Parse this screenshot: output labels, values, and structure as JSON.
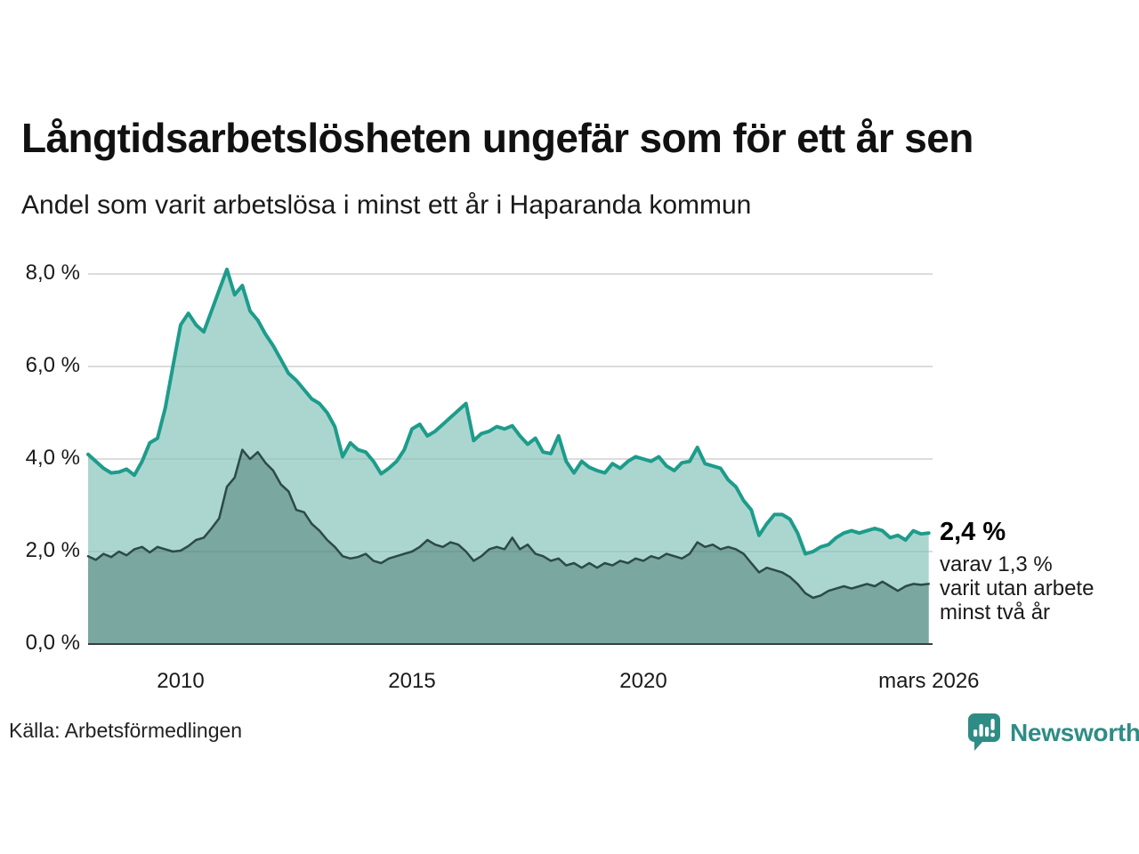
{
  "header": {
    "title": "Långtidsarbetslösheten ungefär som för ett år sen",
    "subtitle": "Andel som varit arbetslösa i minst ett år i Haparanda kommun"
  },
  "chart_data": {
    "type": "area",
    "title": "Långtidsarbetslösheten ungefär som för ett år sen",
    "subtitle": "Andel som varit arbetslösa i minst ett år i Haparanda kommun",
    "x_start_year": 2008.0,
    "x_step_years": 0.166667,
    "x_end_label": "mars 2026",
    "ylim": [
      0,
      8.4
    ],
    "grid": true,
    "y_ticks": [
      {
        "label": "8,0 %",
        "value": 8
      },
      {
        "label": "6,0 %",
        "value": 6
      },
      {
        "label": "4,0 %",
        "value": 4
      },
      {
        "label": "2,0 %",
        "value": 2
      },
      {
        "label": "0,0 %",
        "value": 0
      }
    ],
    "x_ticks": [
      {
        "label": "2010",
        "year": 2010
      },
      {
        "label": "2015",
        "year": 2015
      },
      {
        "label": "2020",
        "year": 2020
      },
      {
        "label": "mars 2026",
        "year": 2026.17
      }
    ],
    "series": [
      {
        "name": "arbetslösa minst ett år",
        "line_color": "#1d9c8b",
        "fill_color": "#abd6d0",
        "line_width": 4,
        "values": [
          4.1,
          3.95,
          3.8,
          3.7,
          3.72,
          3.78,
          3.65,
          3.95,
          4.35,
          4.45,
          5.1,
          6.0,
          6.9,
          7.15,
          6.9,
          6.75,
          7.2,
          7.65,
          8.1,
          7.55,
          7.75,
          7.2,
          7.0,
          6.7,
          6.45,
          6.15,
          5.85,
          5.7,
          5.5,
          5.3,
          5.2,
          5.0,
          4.7,
          4.05,
          4.35,
          4.2,
          4.15,
          3.95,
          3.68,
          3.8,
          3.95,
          4.2,
          4.65,
          4.75,
          4.5,
          4.6,
          4.75,
          4.9,
          5.05,
          5.2,
          4.4,
          4.55,
          4.6,
          4.7,
          4.65,
          4.72,
          4.5,
          4.32,
          4.45,
          4.15,
          4.12,
          4.5,
          3.95,
          3.7,
          3.95,
          3.82,
          3.75,
          3.7,
          3.9,
          3.8,
          3.95,
          4.05,
          4.0,
          3.95,
          4.05,
          3.85,
          3.75,
          3.92,
          3.95,
          4.25,
          3.9,
          3.85,
          3.8,
          3.55,
          3.4,
          3.1,
          2.9,
          2.35,
          2.6,
          2.8,
          2.8,
          2.7,
          2.4,
          1.95,
          2.0,
          2.1,
          2.15,
          2.3,
          2.4,
          2.45,
          2.4,
          2.45,
          2.5,
          2.45,
          2.3,
          2.35,
          2.25,
          2.45,
          2.38,
          2.4
        ]
      },
      {
        "name": "arbetslösa minst två år",
        "line_color": "#2c4a46",
        "fill_color": "#7aa7a0",
        "line_width": 2.5,
        "values": [
          1.9,
          1.82,
          1.95,
          1.88,
          2.0,
          1.92,
          2.05,
          2.1,
          1.98,
          2.1,
          2.05,
          2.0,
          2.02,
          2.12,
          2.25,
          2.3,
          2.5,
          2.72,
          3.4,
          3.6,
          4.2,
          4.0,
          4.15,
          3.92,
          3.75,
          3.45,
          3.3,
          2.9,
          2.85,
          2.6,
          2.45,
          2.25,
          2.1,
          1.9,
          1.85,
          1.88,
          1.95,
          1.8,
          1.75,
          1.85,
          1.9,
          1.95,
          2.0,
          2.1,
          2.25,
          2.15,
          2.1,
          2.2,
          2.15,
          2.0,
          1.8,
          1.9,
          2.05,
          2.1,
          2.05,
          2.3,
          2.05,
          2.15,
          1.95,
          1.9,
          1.8,
          1.85,
          1.7,
          1.75,
          1.65,
          1.75,
          1.65,
          1.75,
          1.7,
          1.8,
          1.75,
          1.85,
          1.8,
          1.9,
          1.85,
          1.95,
          1.9,
          1.85,
          1.95,
          2.2,
          2.1,
          2.15,
          2.05,
          2.1,
          2.05,
          1.95,
          1.75,
          1.55,
          1.65,
          1.6,
          1.55,
          1.45,
          1.3,
          1.1,
          1.0,
          1.05,
          1.15,
          1.2,
          1.25,
          1.2,
          1.25,
          1.3,
          1.25,
          1.35,
          1.25,
          1.15,
          1.25,
          1.3,
          1.28,
          1.3
        ]
      }
    ],
    "annotation": {
      "value_label": "2,4 %",
      "detail_lines": [
        "varav 1,3 %",
        "varit utan arbete",
        "minst två år"
      ]
    },
    "legend_position": "none"
  },
  "footer": {
    "source": "Källa: Arbetsförmedlingen",
    "brand": "Newsworthy"
  },
  "colors": {
    "line_primary": "#1d9c8b",
    "fill_primary": "#abd6d0",
    "line_secondary": "#2c4a46",
    "fill_secondary": "#7aa7a0",
    "gridline": "#e2e2e2",
    "axis_line": "#3c3c3c",
    "brand_teal": "#2f8c85"
  }
}
